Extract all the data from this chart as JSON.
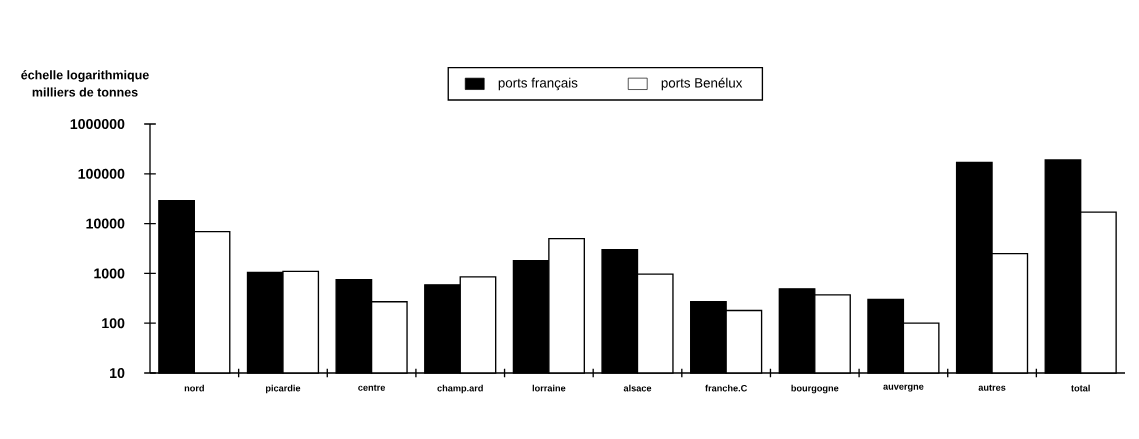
{
  "chart_data": {
    "type": "bar",
    "ylabel": "milliers de tonnes",
    "annotations": [
      "échelle logarithmique"
    ],
    "categories": [
      "nord",
      "picardie",
      "centre",
      "champ.ard",
      "lorraine",
      "alsace",
      "franche.C",
      "bourgogne",
      "auvergne",
      "autres",
      "total"
    ],
    "series": [
      {
        "name": "ports français",
        "color": "#000000",
        "values": [
          29000,
          1050,
          750,
          590,
          1800,
          3000,
          270,
          490,
          300,
          170000,
          190000
        ]
      },
      {
        "name": "ports Benélux",
        "color": "#ffffff",
        "values": [
          6900,
          1100,
          270,
          850,
          5000,
          970,
          180,
          370,
          100,
          2500,
          17000
        ]
      }
    ],
    "log": "y",
    "ylim": [
      10,
      1000000
    ],
    "yticks": [
      10,
      100,
      1000,
      10000,
      100000,
      1000000
    ],
    "legend": "top",
    "grid": false
  }
}
